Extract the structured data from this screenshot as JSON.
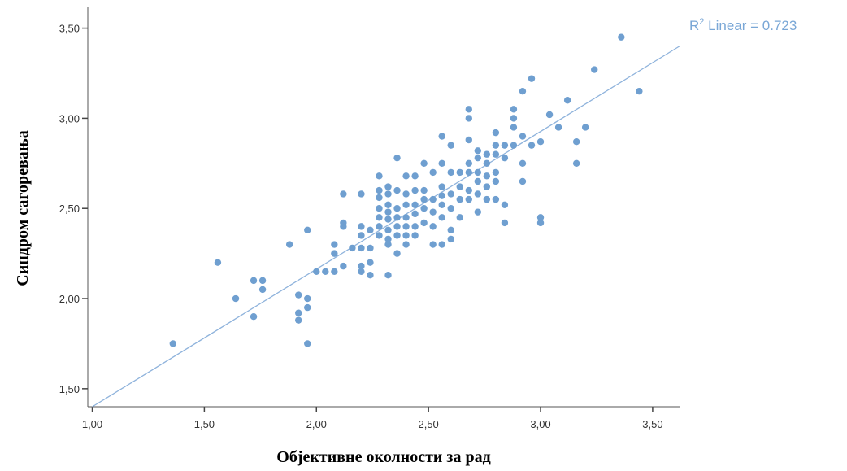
{
  "chart_data": {
    "type": "scatter",
    "xlabel": "Објективне околности за рад",
    "ylabel": "Синдром сагоревања",
    "xlim": [
      0.98,
      3.62
    ],
    "ylim": [
      1.4,
      3.62
    ],
    "x_ticks": [
      "1,00",
      "1,50",
      "2,00",
      "2,50",
      "3,00",
      "3,50"
    ],
    "y_ticks": [
      "1,50",
      "2,00",
      "2,50",
      "3,00",
      "3,50"
    ],
    "x_tick_values": [
      1.0,
      1.5,
      2.0,
      2.5,
      3.0,
      3.5
    ],
    "y_tick_values": [
      1.5,
      2.0,
      2.5,
      3.0,
      3.5
    ],
    "grid": false,
    "annotation": {
      "r2_prefix": "R",
      "r2_sup": "2",
      "r2_text": " Linear = 0.723"
    },
    "fit_line": {
      "x": [
        1.0,
        3.62
      ],
      "y": [
        1.4,
        3.4
      ]
    },
    "point_color": "#6f9fd0",
    "line_color": "#8fb3dc",
    "points": [
      [
        1.36,
        1.75
      ],
      [
        1.56,
        2.2
      ],
      [
        1.64,
        2.0
      ],
      [
        1.72,
        1.9
      ],
      [
        1.72,
        2.1
      ],
      [
        1.76,
        2.1
      ],
      [
        1.76,
        2.05
      ],
      [
        1.88,
        2.3
      ],
      [
        1.92,
        2.02
      ],
      [
        1.92,
        1.92
      ],
      [
        1.92,
        1.88
      ],
      [
        1.96,
        2.0
      ],
      [
        1.96,
        1.95
      ],
      [
        1.96,
        1.75
      ],
      [
        1.96,
        2.38
      ],
      [
        2.0,
        2.15
      ],
      [
        2.04,
        2.15
      ],
      [
        2.08,
        2.15
      ],
      [
        2.08,
        2.3
      ],
      [
        2.08,
        2.25
      ],
      [
        2.12,
        2.58
      ],
      [
        2.12,
        2.42
      ],
      [
        2.12,
        2.4
      ],
      [
        2.12,
        2.18
      ],
      [
        2.16,
        2.28
      ],
      [
        2.2,
        2.58
      ],
      [
        2.2,
        2.4
      ],
      [
        2.2,
        2.35
      ],
      [
        2.2,
        2.28
      ],
      [
        2.2,
        2.18
      ],
      [
        2.2,
        2.15
      ],
      [
        2.24,
        2.38
      ],
      [
        2.24,
        2.28
      ],
      [
        2.24,
        2.2
      ],
      [
        2.24,
        2.13
      ],
      [
        2.28,
        2.68
      ],
      [
        2.28,
        2.6
      ],
      [
        2.28,
        2.56
      ],
      [
        2.28,
        2.5
      ],
      [
        2.28,
        2.45
      ],
      [
        2.28,
        2.4
      ],
      [
        2.28,
        2.35
      ],
      [
        2.32,
        2.62
      ],
      [
        2.32,
        2.58
      ],
      [
        2.32,
        2.52
      ],
      [
        2.32,
        2.48
      ],
      [
        2.32,
        2.44
      ],
      [
        2.32,
        2.38
      ],
      [
        2.32,
        2.33
      ],
      [
        2.32,
        2.3
      ],
      [
        2.32,
        2.13
      ],
      [
        2.36,
        2.78
      ],
      [
        2.36,
        2.6
      ],
      [
        2.36,
        2.5
      ],
      [
        2.36,
        2.45
      ],
      [
        2.36,
        2.4
      ],
      [
        2.36,
        2.35
      ],
      [
        2.36,
        2.25
      ],
      [
        2.4,
        2.68
      ],
      [
        2.4,
        2.58
      ],
      [
        2.4,
        2.52
      ],
      [
        2.4,
        2.45
      ],
      [
        2.4,
        2.4
      ],
      [
        2.4,
        2.35
      ],
      [
        2.4,
        2.3
      ],
      [
        2.44,
        2.68
      ],
      [
        2.44,
        2.6
      ],
      [
        2.44,
        2.52
      ],
      [
        2.44,
        2.47
      ],
      [
        2.44,
        2.4
      ],
      [
        2.44,
        2.35
      ],
      [
        2.48,
        2.75
      ],
      [
        2.48,
        2.6
      ],
      [
        2.48,
        2.55
      ],
      [
        2.48,
        2.5
      ],
      [
        2.48,
        2.42
      ],
      [
        2.52,
        2.7
      ],
      [
        2.52,
        2.55
      ],
      [
        2.52,
        2.48
      ],
      [
        2.52,
        2.4
      ],
      [
        2.52,
        2.3
      ],
      [
        2.56,
        2.9
      ],
      [
        2.56,
        2.75
      ],
      [
        2.56,
        2.62
      ],
      [
        2.56,
        2.57
      ],
      [
        2.56,
        2.52
      ],
      [
        2.56,
        2.45
      ],
      [
        2.56,
        2.3
      ],
      [
        2.6,
        2.85
      ],
      [
        2.6,
        2.7
      ],
      [
        2.6,
        2.58
      ],
      [
        2.6,
        2.5
      ],
      [
        2.6,
        2.38
      ],
      [
        2.6,
        2.33
      ],
      [
        2.64,
        2.7
      ],
      [
        2.64,
        2.62
      ],
      [
        2.64,
        2.55
      ],
      [
        2.64,
        2.45
      ],
      [
        2.68,
        3.05
      ],
      [
        2.68,
        3.0
      ],
      [
        2.68,
        2.88
      ],
      [
        2.68,
        2.75
      ],
      [
        2.68,
        2.7
      ],
      [
        2.68,
        2.6
      ],
      [
        2.68,
        2.55
      ],
      [
        2.72,
        2.82
      ],
      [
        2.72,
        2.78
      ],
      [
        2.72,
        2.7
      ],
      [
        2.72,
        2.65
      ],
      [
        2.72,
        2.58
      ],
      [
        2.72,
        2.48
      ],
      [
        2.76,
        2.8
      ],
      [
        2.76,
        2.75
      ],
      [
        2.76,
        2.68
      ],
      [
        2.76,
        2.62
      ],
      [
        2.76,
        2.55
      ],
      [
        2.8,
        2.92
      ],
      [
        2.8,
        2.85
      ],
      [
        2.8,
        2.8
      ],
      [
        2.8,
        2.7
      ],
      [
        2.8,
        2.65
      ],
      [
        2.8,
        2.55
      ],
      [
        2.84,
        2.85
      ],
      [
        2.84,
        2.78
      ],
      [
        2.84,
        2.52
      ],
      [
        2.84,
        2.42
      ],
      [
        2.88,
        3.05
      ],
      [
        2.88,
        3.0
      ],
      [
        2.88,
        2.95
      ],
      [
        2.88,
        2.85
      ],
      [
        2.92,
        3.15
      ],
      [
        2.92,
        2.9
      ],
      [
        2.92,
        2.75
      ],
      [
        2.92,
        2.65
      ],
      [
        2.96,
        3.22
      ],
      [
        2.96,
        2.85
      ],
      [
        3.0,
        2.87
      ],
      [
        3.0,
        2.42
      ],
      [
        3.0,
        2.45
      ],
      [
        3.04,
        3.02
      ],
      [
        3.08,
        2.95
      ],
      [
        3.12,
        3.1
      ],
      [
        3.16,
        2.87
      ],
      [
        3.16,
        2.75
      ],
      [
        3.2,
        2.95
      ],
      [
        3.24,
        3.27
      ],
      [
        3.36,
        3.45
      ],
      [
        3.44,
        3.15
      ]
    ]
  }
}
